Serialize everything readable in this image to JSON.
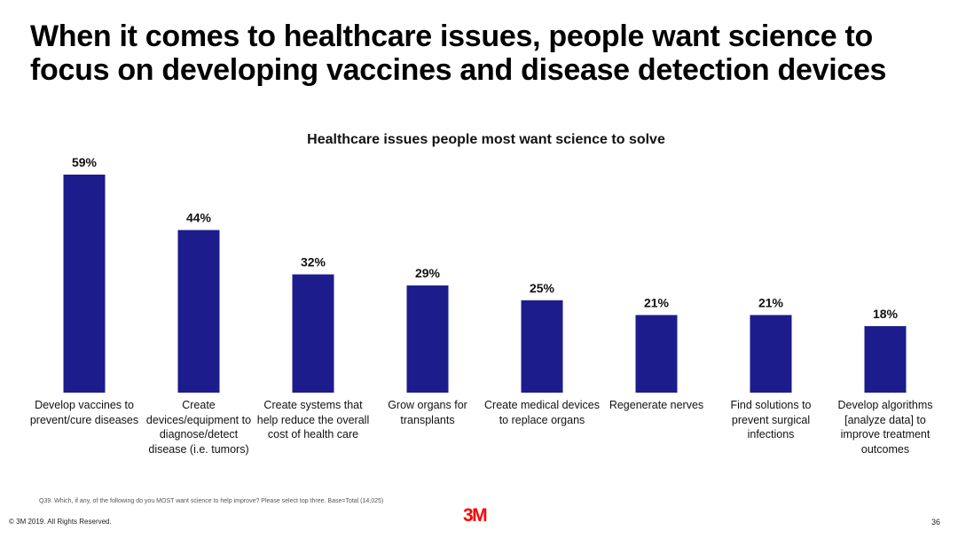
{
  "slide": {
    "title": "When it comes to healthcare issues, people want science to focus on developing vaccines and disease detection devices",
    "footnote": "Q39. Which, if any, of the following do you MOST want science to help improve? Please select top three. Base=Total (14,025)",
    "copyright": "© 3M 2019.   All Rights Reserved.",
    "logo": "3M",
    "page_number": "36"
  },
  "chart_data": {
    "type": "bar",
    "title": "Healthcare issues people most want science to solve",
    "categories": [
      "Develop vaccines to prevent/cure diseases",
      "Create devices/equipment to diagnose/detect disease (i.e. tumors)",
      "Create systems that help reduce the overall cost of health care",
      "Grow organs for transplants",
      "Create medical devices to replace organs",
      "Regenerate nerves",
      "Find solutions to prevent surgical infections",
      "Develop algorithms [analyze data] to improve treatment outcomes"
    ],
    "values": [
      59,
      44,
      32,
      29,
      25,
      21,
      21,
      18
    ],
    "value_labels": [
      "59%",
      "44%",
      "32%",
      "29%",
      "25%",
      "21%",
      "21%",
      "18%"
    ],
    "unit": "%",
    "ylim": [
      0,
      60
    ],
    "grid": false,
    "bar_color": "#1c1c8c"
  }
}
